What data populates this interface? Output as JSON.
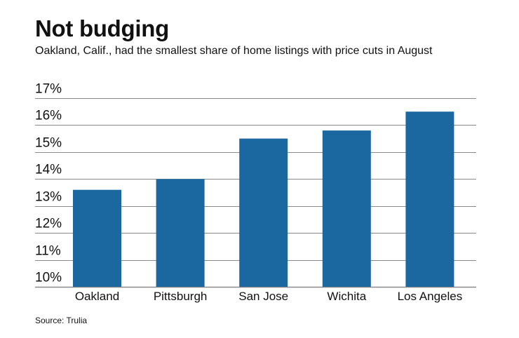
{
  "header": {
    "title": "Not budging",
    "subtitle": "Oakland, Calif., had the smallest share of home listings with price cuts in August"
  },
  "footer": {
    "source": "Source: Trulia"
  },
  "chart_data": {
    "type": "bar",
    "title": "Not budging",
    "subtitle": "Oakland, Calif., had the smallest share of home listings with price cuts in August",
    "xlabel": "",
    "ylabel": "",
    "categories": [
      "Oakland",
      "Pittsburgh",
      "San Jose",
      "Wichita",
      "Los Angeles"
    ],
    "values": [
      13.6,
      14.0,
      15.5,
      15.8,
      16.5
    ],
    "unit": "%",
    "ylim": [
      10,
      17
    ],
    "yticks": [
      10,
      11,
      12,
      13,
      14,
      15,
      16,
      17
    ],
    "ytick_labels": [
      "10%",
      "11%",
      "12%",
      "13%",
      "14%",
      "15%",
      "16%",
      "17%"
    ],
    "grid": true,
    "bar_color": "#1b679f",
    "grid_color": "#8a8a8a",
    "source": "Source: Trulia"
  }
}
